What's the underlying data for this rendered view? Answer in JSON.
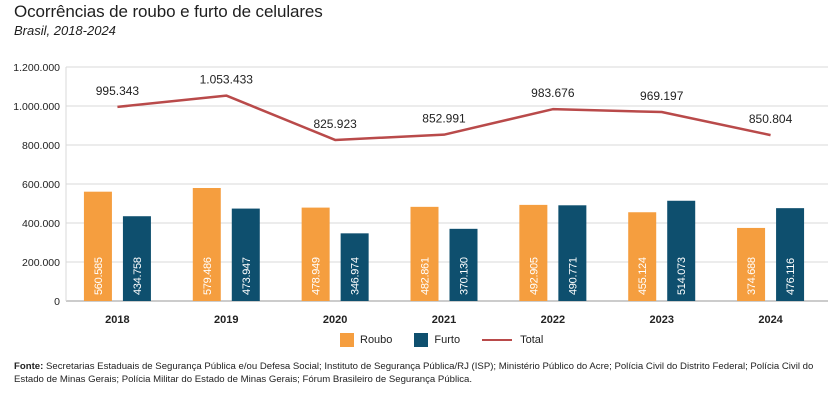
{
  "title": "Ocorrências de roubo e furto de celulares",
  "subtitle": "Brasil, 2018-2024",
  "colors": {
    "roubo": "#F59E3F",
    "furto": "#0E4F6E",
    "total": "#B94A4A",
    "grid": "#d9d9d9",
    "axis": "#9a9a9a"
  },
  "legend": {
    "roubo": "Roubo",
    "furto": "Furto",
    "total": "Total"
  },
  "footnote": {
    "label": "Fonte:",
    "text": "Secretarias Estaduais de Segurança Pública e/ou Defesa Social; Instituto de Segurança Pública/RJ (ISP); Ministério Público do Acre; Polícia Civil do Distrito Federal; Polícia Civil do Estado de Minas Gerais; Polícia Militar do Estado de Minas Gerais; Fórum Brasileiro de Segurança Pública."
  },
  "chart_data": {
    "type": "bar",
    "categories": [
      "2018",
      "2019",
      "2020",
      "2021",
      "2022",
      "2023",
      "2024"
    ],
    "series": [
      {
        "name": "Roubo",
        "kind": "bar",
        "values": [
          560585,
          579486,
          478949,
          482861,
          492905,
          455124,
          374688
        ],
        "labels": [
          "560.585",
          "579.486",
          "478.949",
          "482.861",
          "492.905",
          "455.124",
          "374.688"
        ]
      },
      {
        "name": "Furto",
        "kind": "bar",
        "values": [
          434758,
          473947,
          346974,
          370130,
          490771,
          514073,
          476116
        ],
        "labels": [
          "434.758",
          "473.947",
          "346.974",
          "370.130",
          "490.771",
          "514.073",
          "476.116"
        ]
      },
      {
        "name": "Total",
        "kind": "line",
        "values": [
          995343,
          1053433,
          825923,
          852991,
          983676,
          969197,
          850804
        ],
        "labels": [
          "995.343",
          "1.053.433",
          "825.923",
          "852.991",
          "983.676",
          "969.197",
          "850.804"
        ]
      }
    ],
    "ylim": [
      0,
      1200000
    ],
    "yticks": [
      0,
      200000,
      400000,
      600000,
      800000,
      1000000,
      1200000
    ],
    "ytick_labels": [
      "0",
      "200.000",
      "400.000",
      "600.000",
      "800.000",
      "1.000.000",
      "1.200.000"
    ],
    "grid": true,
    "legend_position": "bottom"
  }
}
